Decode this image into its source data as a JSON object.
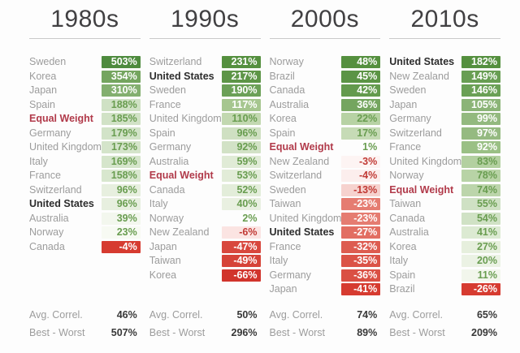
{
  "labels": {
    "avg_correl": "Avg. Correl.",
    "best_worst": "Best - Worst"
  },
  "colors": {
    "positive_dark_green": "#55903f",
    "positive_text_green": "#699d50",
    "negative_dark_red": "#d63b30",
    "negative_text_red": "#c13a35",
    "accent_label_red": "#b13a4a",
    "bold_label_black": "#2d2d2d",
    "dim_label_gray": "#9c9c9c",
    "header_gray": "#414042"
  },
  "chart_data": {
    "type": "table",
    "description": "Decade stock market total returns by country, color-coded heatmap chips; Equal Weight and United States highlighted; per-column average correlation and best-minus-worst spread.",
    "decades": [
      {
        "header": "1980s",
        "avg_correl": "46%",
        "best_worst": "507%",
        "rows": [
          {
            "label": "Sweden",
            "value": "503%",
            "pct": 503,
            "bg": "#4e8b3e",
            "fg": "#ffffff",
            "label_style": "dim"
          },
          {
            "label": "Korea",
            "value": "354%",
            "pct": 354,
            "bg": "#74a55f",
            "fg": "#ffffff",
            "label_style": "dim"
          },
          {
            "label": "Japan",
            "value": "310%",
            "pct": 310,
            "bg": "#83af6f",
            "fg": "#ffffff",
            "label_style": "dim"
          },
          {
            "label": "Spain",
            "value": "188%",
            "pct": 188,
            "bg": "#cfe1c4",
            "fg": "#699d50",
            "label_style": "dim"
          },
          {
            "label": "Equal Weight",
            "value": "185%",
            "pct": 185,
            "bg": "#d1e2c6",
            "fg": "#699d50",
            "label_style": "accent"
          },
          {
            "label": "Germany",
            "value": "179%",
            "pct": 179,
            "bg": "#d2e3c8",
            "fg": "#699d50",
            "label_style": "dim"
          },
          {
            "label": "United Kingdom",
            "value": "173%",
            "pct": 173,
            "bg": "#d4e4ca",
            "fg": "#699d50",
            "label_style": "dim"
          },
          {
            "label": "Italy",
            "value": "169%",
            "pct": 169,
            "bg": "#d5e5cb",
            "fg": "#699d50",
            "label_style": "dim"
          },
          {
            "label": "France",
            "value": "158%",
            "pct": 158,
            "bg": "#d8e7ce",
            "fg": "#699d50",
            "label_style": "dim"
          },
          {
            "label": "Switzerland",
            "value": "96%",
            "pct": 96,
            "bg": "#e7efdf",
            "fg": "#699d50",
            "label_style": "dim"
          },
          {
            "label": "United States",
            "value": "96%",
            "pct": 96,
            "bg": "#e7efdf",
            "fg": "#699d50",
            "label_style": "bold"
          },
          {
            "label": "Australia",
            "value": "39%",
            "pct": 39,
            "bg": "#f3f7ee",
            "fg": "#699d50",
            "label_style": "dim"
          },
          {
            "label": "Norway",
            "value": "23%",
            "pct": 23,
            "bg": "#f7faf3",
            "fg": "#699d50",
            "label_style": "dim"
          },
          {
            "label": "Canada",
            "value": "-4%",
            "pct": -4,
            "bg": "#d63b30",
            "fg": "#ffffff",
            "label_style": "dim"
          }
        ]
      },
      {
        "header": "1990s",
        "avg_correl": "50%",
        "best_worst": "296%",
        "rows": [
          {
            "label": "Switzerland",
            "value": "231%",
            "pct": 231,
            "bg": "#55903f",
            "fg": "#ffffff",
            "label_style": "dim"
          },
          {
            "label": "United States",
            "value": "217%",
            "pct": 217,
            "bg": "#5d9547",
            "fg": "#ffffff",
            "label_style": "bold"
          },
          {
            "label": "Sweden",
            "value": "190%",
            "pct": 190,
            "bg": "#6ba057",
            "fg": "#ffffff",
            "label_style": "dim"
          },
          {
            "label": "France",
            "value": "117%",
            "pct": 117,
            "bg": "#a6c68f",
            "fg": "#ffffff",
            "label_style": "dim"
          },
          {
            "label": "United Kingdom",
            "value": "110%",
            "pct": 110,
            "bg": "#c2d8b0",
            "fg": "#699d50",
            "label_style": "dim"
          },
          {
            "label": "Spain",
            "value": "96%",
            "pct": 96,
            "bg": "#cfe0c2",
            "fg": "#699d50",
            "label_style": "dim"
          },
          {
            "label": "Germany",
            "value": "92%",
            "pct": 92,
            "bg": "#d2e2c6",
            "fg": "#699d50",
            "label_style": "dim"
          },
          {
            "label": "Australia",
            "value": "59%",
            "pct": 59,
            "bg": "#e0ebd6",
            "fg": "#699d50",
            "label_style": "dim"
          },
          {
            "label": "Equal Weight",
            "value": "53%",
            "pct": 53,
            "bg": "#e2ecd8",
            "fg": "#699d50",
            "label_style": "accent"
          },
          {
            "label": "Canada",
            "value": "52%",
            "pct": 52,
            "bg": "#e3edda",
            "fg": "#699d50",
            "label_style": "dim"
          },
          {
            "label": "Italy",
            "value": "40%",
            "pct": 40,
            "bg": "#e9f0e1",
            "fg": "#699d50",
            "label_style": "dim"
          },
          {
            "label": "Norway",
            "value": "2%",
            "pct": 2,
            "bg": null,
            "fg": "#699d50",
            "label_style": "dim"
          },
          {
            "label": "New Zealand",
            "value": "-6%",
            "pct": -6,
            "bg": "#fbe4e2",
            "fg": "#c13a35",
            "label_style": "dim"
          },
          {
            "label": "Japan",
            "value": "-47%",
            "pct": -47,
            "bg": "#d8473d",
            "fg": "#ffffff",
            "label_style": "dim"
          },
          {
            "label": "Taiwan",
            "value": "-49%",
            "pct": -49,
            "bg": "#d64338",
            "fg": "#ffffff",
            "label_style": "dim"
          },
          {
            "label": "Korea",
            "value": "-66%",
            "pct": -66,
            "bg": "#d1342c",
            "fg": "#ffffff",
            "label_style": "dim"
          }
        ]
      },
      {
        "header": "2000s",
        "avg_correl": "74%",
        "best_worst": "89%",
        "rows": [
          {
            "label": "Norway",
            "value": "48%",
            "pct": 48,
            "bg": "#55903f",
            "fg": "#ffffff",
            "label_style": "dim"
          },
          {
            "label": "Brazil",
            "value": "45%",
            "pct": 45,
            "bg": "#5b9445",
            "fg": "#ffffff",
            "label_style": "dim"
          },
          {
            "label": "Canada",
            "value": "42%",
            "pct": 42,
            "bg": "#639a4d",
            "fg": "#ffffff",
            "label_style": "dim"
          },
          {
            "label": "Australia",
            "value": "36%",
            "pct": 36,
            "bg": "#74a55f",
            "fg": "#ffffff",
            "label_style": "dim"
          },
          {
            "label": "Korea",
            "value": "22%",
            "pct": 22,
            "bg": "#b7d2a4",
            "fg": "#699d50",
            "label_style": "dim"
          },
          {
            "label": "Spain",
            "value": "17%",
            "pct": 17,
            "bg": "#c6dbb6",
            "fg": "#699d50",
            "label_style": "dim"
          },
          {
            "label": "Equal Weight",
            "value": "1%",
            "pct": 1,
            "bg": null,
            "fg": "#699d50",
            "label_style": "accent"
          },
          {
            "label": "New Zealand",
            "value": "-3%",
            "pct": -3,
            "bg": "#fdf4f3",
            "fg": "#c13a35",
            "label_style": "dim"
          },
          {
            "label": "Switzerland",
            "value": "-4%",
            "pct": -4,
            "bg": "#fceeed",
            "fg": "#c13a35",
            "label_style": "dim"
          },
          {
            "label": "Sweden",
            "value": "-13%",
            "pct": -13,
            "bg": "#f6d2ce",
            "fg": "#c13a35",
            "label_style": "dim"
          },
          {
            "label": "Taiwan",
            "value": "-23%",
            "pct": -23,
            "bg": "#e57c71",
            "fg": "#ffffff",
            "label_style": "dim"
          },
          {
            "label": "United Kingdom",
            "value": "-23%",
            "pct": -23,
            "bg": "#e57c71",
            "fg": "#ffffff",
            "label_style": "dim"
          },
          {
            "label": "United States",
            "value": "-27%",
            "pct": -27,
            "bg": "#e26e62",
            "fg": "#ffffff",
            "label_style": "bold"
          },
          {
            "label": "France",
            "value": "-32%",
            "pct": -32,
            "bg": "#dd5c50",
            "fg": "#ffffff",
            "label_style": "dim"
          },
          {
            "label": "Italy",
            "value": "-35%",
            "pct": -35,
            "bg": "#db5347",
            "fg": "#ffffff",
            "label_style": "dim"
          },
          {
            "label": "Germany",
            "value": "-36%",
            "pct": -36,
            "bg": "#da5044",
            "fg": "#ffffff",
            "label_style": "dim"
          },
          {
            "label": "Japan",
            "value": "-41%",
            "pct": -41,
            "bg": "#d63b30",
            "fg": "#ffffff",
            "label_style": "dim"
          }
        ]
      },
      {
        "header": "2010s",
        "avg_correl": "65%",
        "best_worst": "209%",
        "rows": [
          {
            "label": "United States",
            "value": "182%",
            "pct": 182,
            "bg": "#55903f",
            "fg": "#ffffff",
            "label_style": "bold"
          },
          {
            "label": "New Zealand",
            "value": "149%",
            "pct": 149,
            "bg": "#689e53",
            "fg": "#ffffff",
            "label_style": "dim"
          },
          {
            "label": "Sweden",
            "value": "146%",
            "pct": 146,
            "bg": "#6aa055",
            "fg": "#ffffff",
            "label_style": "dim"
          },
          {
            "label": "Japan",
            "value": "105%",
            "pct": 105,
            "bg": "#8bb477",
            "fg": "#ffffff",
            "label_style": "dim"
          },
          {
            "label": "Germany",
            "value": "99%",
            "pct": 99,
            "bg": "#93b97f",
            "fg": "#ffffff",
            "label_style": "dim"
          },
          {
            "label": "Switzerland",
            "value": "97%",
            "pct": 97,
            "bg": "#95ba81",
            "fg": "#ffffff",
            "label_style": "dim"
          },
          {
            "label": "France",
            "value": "92%",
            "pct": 92,
            "bg": "#9ac085",
            "fg": "#ffffff",
            "label_style": "dim"
          },
          {
            "label": "United Kingdom",
            "value": "83%",
            "pct": 83,
            "bg": "#b3d0a0",
            "fg": "#699d50",
            "label_style": "dim"
          },
          {
            "label": "Norway",
            "value": "78%",
            "pct": 78,
            "bg": "#b8d3a6",
            "fg": "#699d50",
            "label_style": "dim"
          },
          {
            "label": "Equal Weight",
            "value": "74%",
            "pct": 74,
            "bg": "#bcd5ab",
            "fg": "#699d50",
            "label_style": "accent"
          },
          {
            "label": "Taiwan",
            "value": "55%",
            "pct": 55,
            "bg": "#cfe1c4",
            "fg": "#699d50",
            "label_style": "dim"
          },
          {
            "label": "Canada",
            "value": "54%",
            "pct": 54,
            "bg": "#d0e2c5",
            "fg": "#699d50",
            "label_style": "dim"
          },
          {
            "label": "Australia",
            "value": "41%",
            "pct": 41,
            "bg": "#dcead2",
            "fg": "#699d50",
            "label_style": "dim"
          },
          {
            "label": "Korea",
            "value": "27%",
            "pct": 27,
            "bg": "#e6efdd",
            "fg": "#699d50",
            "label_style": "dim"
          },
          {
            "label": "Italy",
            "value": "20%",
            "pct": 20,
            "bg": "#ebf2e4",
            "fg": "#699d50",
            "label_style": "dim"
          },
          {
            "label": "Spain",
            "value": "11%",
            "pct": 11,
            "bg": "#f2f6ec",
            "fg": "#699d50",
            "label_style": "dim"
          },
          {
            "label": "Brazil",
            "value": "-26%",
            "pct": -26,
            "bg": "#d63b30",
            "fg": "#ffffff",
            "label_style": "dim"
          }
        ]
      }
    ]
  }
}
